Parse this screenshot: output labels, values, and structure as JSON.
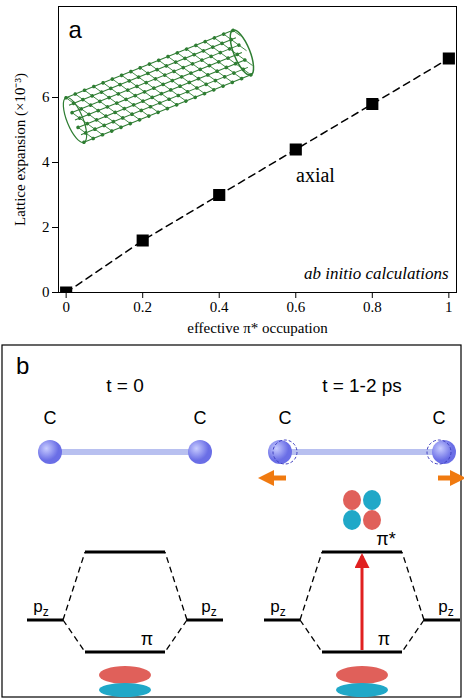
{
  "chart_data": {
    "type": "line",
    "panel": "a",
    "x_label": "effective π* occupation",
    "y_label": "Lattice expansion (×10⁻³)",
    "annotations": [
      "axial",
      "ab initio calculations"
    ],
    "x": [
      0,
      0.2,
      0.4,
      0.6,
      0.8,
      1
    ],
    "values": [
      0,
      1.6,
      3.0,
      4.4,
      5.8,
      7.2
    ],
    "color": "#000000",
    "marker": "square",
    "line_style": "dashed",
    "xlim": [
      -0.02,
      1.02
    ],
    "xticks": [
      0,
      0.2,
      0.4,
      0.6,
      0.8,
      1
    ],
    "ylim": [
      0,
      8.8
    ],
    "yticks": [
      0,
      2,
      4,
      6
    ],
    "grid": false
  },
  "diagram": {
    "panel": "b",
    "atom_label": "C",
    "orbital_label": {
      "base": "p",
      "sub": "z"
    },
    "bonding_label": "π",
    "antibonding_label": "π*",
    "states": [
      {
        "time": "t = 0",
        "excited": false
      },
      {
        "time": "t = 1-2 ps",
        "excited": true
      }
    ]
  }
}
